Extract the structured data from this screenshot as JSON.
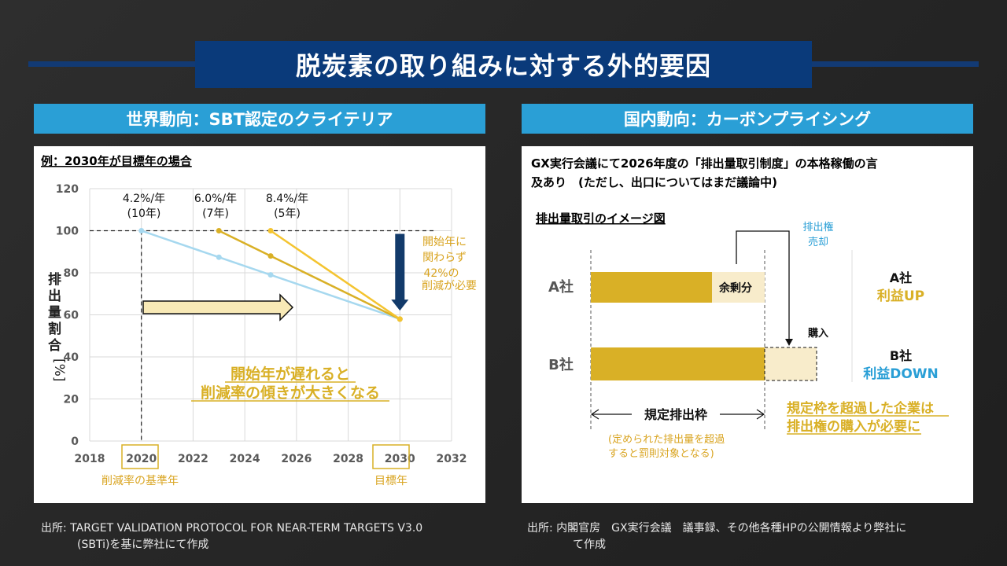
{
  "title": "脱炭素の取り組みに対する外的要因",
  "colors": {
    "title_bg": "#0a3a7a",
    "section_bg": "#2a9fd6",
    "gold": "#d9b026",
    "light_blue": "#a6d8ef",
    "blue_text": "#2a9fd6",
    "dark_navy": "#123a6a"
  },
  "left": {
    "heading": "世界動向：SBT認定のクライテリア",
    "subtitle": "例：2030年が目標年の場合",
    "rates": [
      {
        "rate": "4.2%/年",
        "years": "(10年)"
      },
      {
        "rate": "6.0%/年",
        "years": "(7年)"
      },
      {
        "rate": "8.4%/年",
        "years": "(5年)"
      }
    ],
    "note_lines": [
      "開始年に",
      "関わらず",
      "42%の",
      "削減が必要"
    ],
    "message_lines": [
      "開始年が遅れると",
      "削減率の傾きが大きくなる"
    ],
    "base_year_label": "削減率の基準年",
    "target_year_label": "目標年",
    "source_lines": [
      "出所: TARGET VALIDATION PROTOCOL FOR NEAR-TERM TARGETS V3.0",
      "(SBTi)を基に弊社にて作成"
    ]
  },
  "chart_data": {
    "type": "line",
    "title": "",
    "xlabel": "",
    "ylabel": "排出量割合[%]",
    "xlim": [
      2018,
      2032
    ],
    "ylim": [
      0,
      120
    ],
    "xticks": [
      2018,
      2020,
      2022,
      2024,
      2026,
      2028,
      2030,
      2032
    ],
    "yticks": [
      0,
      20,
      40,
      60,
      80,
      100,
      120
    ],
    "reference_line": {
      "y": 100
    },
    "series": [
      {
        "name": "4.2%/年 (10年)",
        "color": "#a6d8ef",
        "x": [
          2020,
          2023,
          2025,
          2030
        ],
        "y": [
          100,
          87.4,
          79,
          58
        ]
      },
      {
        "name": "6.0%/年 (7年)",
        "color": "#d9b026",
        "x": [
          2023,
          2025,
          2030
        ],
        "y": [
          100,
          88,
          58
        ]
      },
      {
        "name": "8.4%/年 (5年)",
        "color": "#f4c430",
        "x": [
          2025,
          2030
        ],
        "y": [
          100,
          58
        ]
      }
    ],
    "arrow_down": {
      "x": 2030,
      "from": 100,
      "to": 62
    }
  },
  "right": {
    "heading": "国内動向：カーボンプライシング",
    "intro_lines": [
      "GX実行会議にて2026年度の「排出量取引制度」の本格稼働の言",
      "及あり　(ただし、出口についてはまだ議論中)"
    ],
    "diagram_title": "排出量取引のイメージ図",
    "sell_label_lines": [
      "排出権",
      "売却"
    ],
    "buy_label": "購入",
    "surplus_label": "余剰分",
    "company_a": "A社",
    "company_b": "B社",
    "a_result_name": "A社",
    "a_result_value": "利益UP",
    "b_result_name": "B社",
    "b_result_value": "利益DOWN",
    "quota_label": "規定排出枠",
    "quota_note_lines": [
      "(定められた排出量を超過",
      "すると罰則対象となる)"
    ],
    "conclusion_lines": [
      "規定枠を超過した企業は",
      "排出権の購入が必要に"
    ],
    "source_lines": [
      "出所: 内閣官房　GX実行会議　議事録、その他各種HPの公開情報より弊社に",
      "て作成"
    ]
  }
}
